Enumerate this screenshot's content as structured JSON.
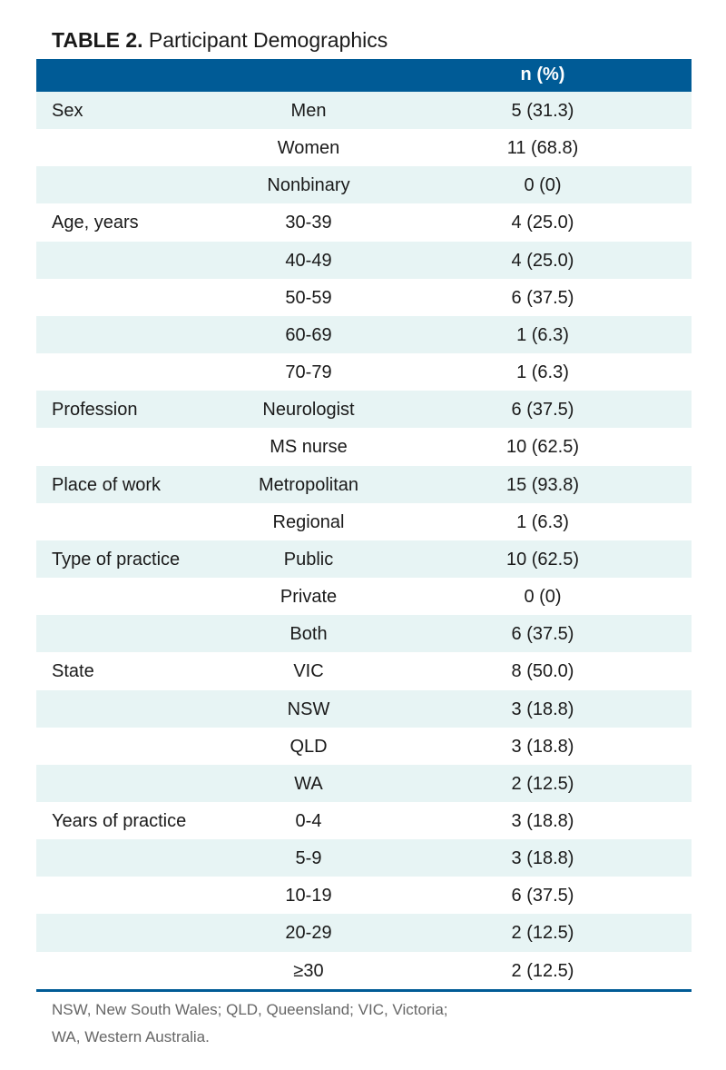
{
  "title": {
    "label": "TABLE 2.",
    "text": "Participant Demographics"
  },
  "table": {
    "header": "n (%)",
    "rows": [
      {
        "group": "Sex",
        "item": "Men",
        "n": "5 (31.3)"
      },
      {
        "item": "Women",
        "n": "11 (68.8)"
      },
      {
        "item": "Nonbinary",
        "n": "0 (0)"
      },
      {
        "group": "Age, years",
        "item": "30-39",
        "n": "4 (25.0)"
      },
      {
        "item": "40-49",
        "n": "4 (25.0)"
      },
      {
        "item": "50-59",
        "n": "6 (37.5)"
      },
      {
        "item": "60-69",
        "n": "1 (6.3)"
      },
      {
        "item": "70-79",
        "n": "1 (6.3)"
      },
      {
        "group": "Profession",
        "item": "Neurologist",
        "n": "6 (37.5)"
      },
      {
        "item": "MS nurse",
        "n": "10 (62.5)"
      },
      {
        "group": "Place of work",
        "item": "Metropolitan",
        "n": "15 (93.8)"
      },
      {
        "item": "Regional",
        "n": "1 (6.3)"
      },
      {
        "group": "Type of practice",
        "item": "Public",
        "n": "10 (62.5)"
      },
      {
        "item": "Private",
        "n": "0 (0)"
      },
      {
        "item": "Both",
        "n": "6 (37.5)"
      },
      {
        "group": "State",
        "item": "VIC",
        "n": "8 (50.0)"
      },
      {
        "item": "NSW",
        "n": "3 (18.8)"
      },
      {
        "item": "QLD",
        "n": "3 (18.8)"
      },
      {
        "item": "WA",
        "n": "2 (12.5)"
      },
      {
        "group": "Years of practice",
        "item": "0-4",
        "n": "3 (18.8)"
      },
      {
        "item": "5-9",
        "n": "3 (18.8)"
      },
      {
        "item": "10-19",
        "n": "6 (37.5)"
      },
      {
        "item": "20-29",
        "n": "2 (12.5)"
      },
      {
        "item": "≥30",
        "n": "2 (12.5)"
      }
    ]
  },
  "footnote": [
    "NSW, New South Wales; QLD, Queensland; VIC, Victoria;",
    "WA, Western Australia."
  ]
}
